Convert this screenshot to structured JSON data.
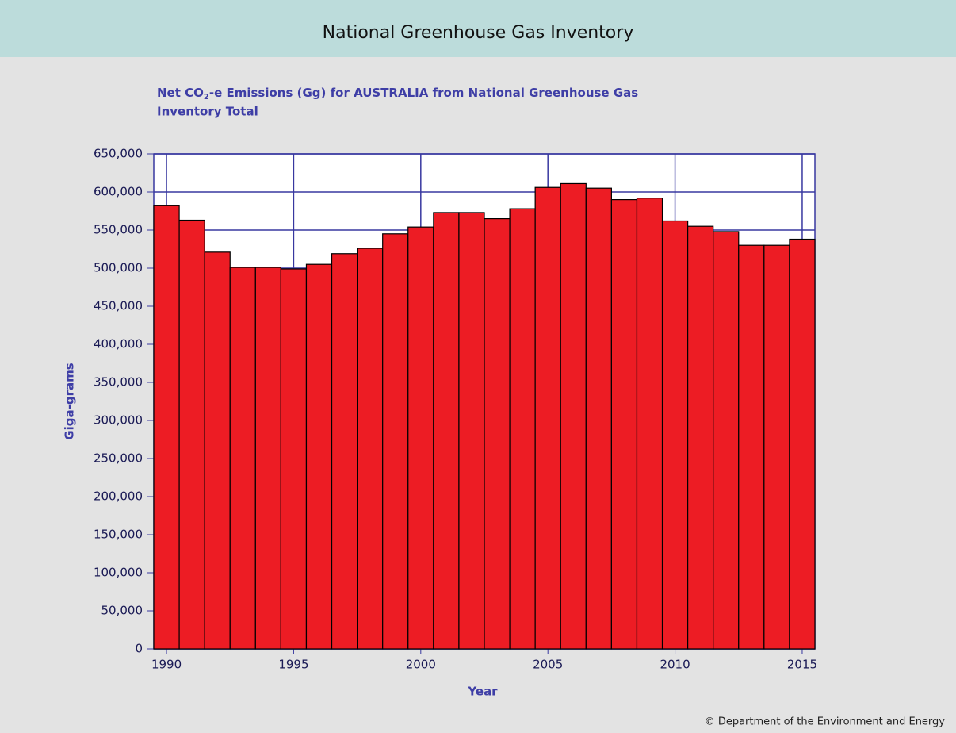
{
  "header": {
    "title": "National Greenhouse Gas Inventory"
  },
  "chart_data": {
    "type": "bar",
    "title_parts": [
      "Net CO",
      "2",
      "-e Emissions (Gg) for AUSTRALIA from National Greenhouse Gas",
      "Inventory Total"
    ],
    "x_label": "Year",
    "y_label": "Giga-grams",
    "x": [
      1990,
      1991,
      1992,
      1993,
      1994,
      1995,
      1996,
      1997,
      1998,
      1999,
      2000,
      2001,
      2002,
      2003,
      2004,
      2005,
      2006,
      2007,
      2008,
      2009,
      2010,
      2011,
      2012,
      2013,
      2014,
      2015
    ],
    "values": [
      582000,
      563000,
      521000,
      501000,
      501000,
      499000,
      505000,
      519000,
      526000,
      545000,
      554000,
      573000,
      573000,
      565000,
      578000,
      606000,
      611000,
      605000,
      590000,
      592000,
      562000,
      555000,
      548000,
      530000,
      530000,
      538000
    ],
    "color": "#ed1c24",
    "xlim": [
      1989.5,
      2015.5
    ],
    "xticks": [
      1990,
      1995,
      2000,
      2005,
      2010,
      2015
    ],
    "ylim": [
      0,
      650000
    ],
    "yticks": [
      0,
      {
        "value": 50000,
        "label": "50,000"
      },
      {
        "value": 100000,
        "label": "100,000"
      },
      {
        "value": 150000,
        "label": "150,000"
      },
      {
        "value": 200000,
        "label": "200,000"
      },
      {
        "value": 250000,
        "label": "250,000"
      },
      {
        "value": 300000,
        "label": "300,000"
      },
      {
        "value": 350000,
        "label": "350,000"
      },
      {
        "value": 400000,
        "label": "400,000"
      },
      {
        "value": 450000,
        "label": "450,000"
      },
      {
        "value": 500000,
        "label": "500,000"
      },
      {
        "value": 550000,
        "label": "550,000"
      },
      {
        "value": 600000,
        "label": "600,000"
      },
      {
        "value": 650000,
        "label": "650,000"
      }
    ],
    "grid": true
  },
  "footer": {
    "credit": "© Department of the Environment and Energy"
  }
}
